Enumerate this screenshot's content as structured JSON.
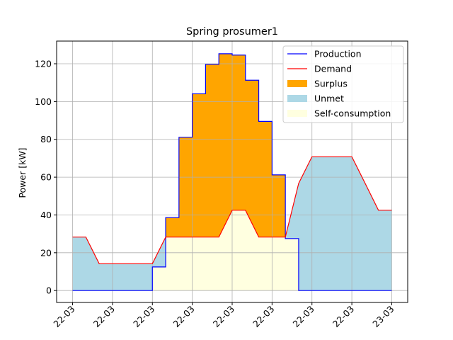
{
  "chart_data": {
    "type": "area",
    "title": "Spring prosumer1",
    "xlabel": "",
    "ylabel": "Power [kW]",
    "x_tick_labels": [
      "22-03",
      "22-03",
      "22-03",
      "22-03",
      "22-03",
      "22-03",
      "22-03",
      "22-03",
      "23-03"
    ],
    "x_tick_hours": [
      0,
      3,
      6,
      9,
      12,
      15,
      18,
      21,
      24
    ],
    "y_ticks": [
      0,
      20,
      40,
      60,
      80,
      100,
      120
    ],
    "xlim": [
      -1.2,
      25.2
    ],
    "ylim": [
      -6.3,
      132
    ],
    "grid": true,
    "legend_position": "top-right",
    "x_hours": [
      0,
      1,
      2,
      3,
      4,
      5,
      6,
      7,
      8,
      9,
      10,
      11,
      12,
      13,
      14,
      15,
      16,
      17,
      18,
      19,
      20,
      21,
      22,
      23,
      24
    ],
    "series": [
      {
        "name": "Production",
        "type": "line",
        "color": "#0000ff",
        "step": "post",
        "values": [
          0,
          0,
          0,
          0,
          0,
          0,
          12.5,
          38.6,
          81.1,
          104.1,
          119.7,
          125.3,
          124.6,
          111.3,
          89.5,
          61.2,
          27.5,
          0,
          0,
          0,
          0,
          0,
          0,
          0,
          0
        ]
      },
      {
        "name": "Demand",
        "type": "line",
        "color": "#ff0000",
        "values": [
          28.3,
          28.3,
          14.2,
          14.2,
          14.2,
          14.2,
          14.2,
          28.3,
          28.3,
          28.3,
          28.3,
          28.3,
          42.5,
          42.5,
          28.3,
          28.3,
          28.3,
          56.7,
          70.8,
          70.8,
          70.8,
          70.8,
          56.7,
          42.5,
          42.5
        ]
      },
      {
        "name": "Surplus",
        "type": "fill",
        "color": "#ffa500"
      },
      {
        "name": "Unmet",
        "type": "fill",
        "color": "#add8e6"
      },
      {
        "name": "Self-consumption",
        "type": "fill",
        "color": "#ffffe0"
      }
    ]
  }
}
